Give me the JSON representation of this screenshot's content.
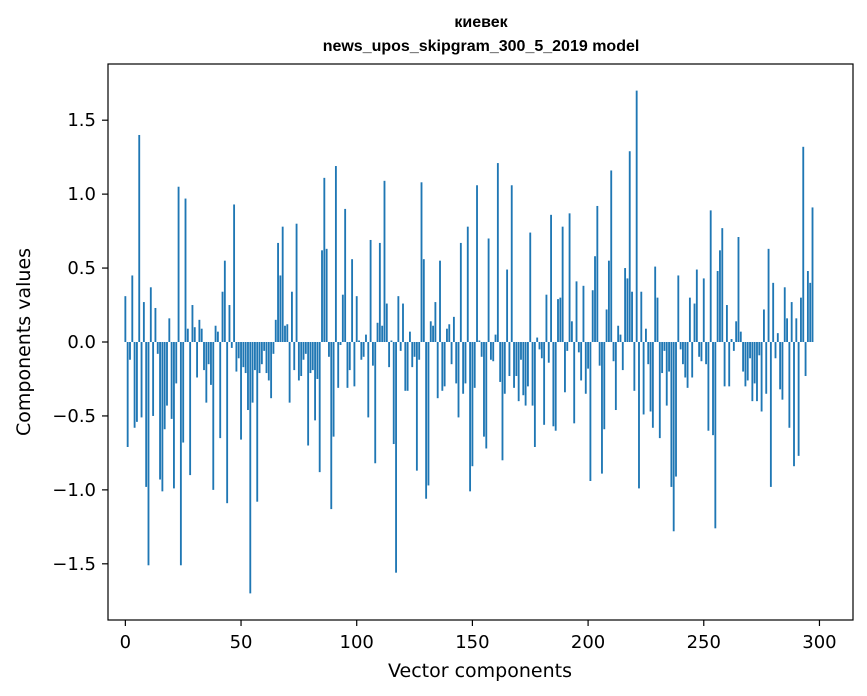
{
  "chart_data": {
    "type": "bar",
    "title": "киевек",
    "subtitle": "news_upos_skipgram_300_5_2019 model",
    "xlabel": "Vector components",
    "ylabel": "Components values",
    "xlim": [
      -7.5,
      314.5
    ],
    "ylim": [
      -1.88,
      1.88
    ],
    "xticks": [
      0,
      50,
      100,
      150,
      200,
      250,
      300
    ],
    "yticks": [
      -1.5,
      -1.0,
      -0.5,
      0.0,
      0.5,
      1.0,
      1.5
    ],
    "ytick_labels": [
      "−1.5",
      "−1.0",
      "−0.5",
      "0.0",
      "0.5",
      "1.0",
      "1.5"
    ],
    "bar_color": "#1f77b4",
    "x_start": 0,
    "values": [
      0.31,
      -0.71,
      -0.12,
      0.45,
      -0.58,
      -0.54,
      1.4,
      -0.51,
      0.27,
      -0.98,
      -1.51,
      0.37,
      -0.5,
      0.23,
      -0.08,
      -0.93,
      -1.01,
      -0.59,
      -0.43,
      0.16,
      -0.52,
      -0.99,
      -0.28,
      1.05,
      -1.51,
      -0.68,
      0.97,
      0.09,
      -0.9,
      0.25,
      0.1,
      -0.24,
      0.15,
      0.09,
      -0.19,
      -0.41,
      -0.15,
      -0.29,
      -1.0,
      0.11,
      0.07,
      -0.65,
      0.34,
      0.55,
      -1.09,
      0.25,
      -0.04,
      0.93,
      -0.2,
      -0.11,
      -0.66,
      -0.17,
      -0.21,
      -0.46,
      -1.7,
      -0.41,
      -0.19,
      -1.08,
      -0.21,
      -0.15,
      -0.06,
      -0.21,
      -0.26,
      -0.38,
      -0.08,
      0.15,
      0.67,
      0.45,
      0.78,
      0.11,
      0.12,
      -0.41,
      0.34,
      -0.19,
      0.8,
      -0.26,
      -0.23,
      -0.12,
      -0.08,
      -0.7,
      -0.21,
      -0.19,
      -0.53,
      -0.25,
      -0.88,
      0.62,
      1.11,
      0.63,
      -0.1,
      -1.13,
      -0.64,
      1.19,
      -0.31,
      -0.02,
      0.32,
      0.9,
      -0.31,
      -0.19,
      0.56,
      -0.3,
      0.31,
      0.01,
      -0.12,
      -0.1,
      0.05,
      -0.51,
      0.69,
      -0.16,
      -0.82,
      0.13,
      0.67,
      0.11,
      1.09,
      0.26,
      -0.17,
      0.01,
      -0.69,
      -1.56,
      0.31,
      -0.06,
      0.26,
      -0.33,
      -0.33,
      0.07,
      -0.17,
      -0.1,
      -0.87,
      -0.12,
      1.08,
      0.56,
      -1.06,
      -0.97,
      0.14,
      0.11,
      0.27,
      -0.38,
      0.55,
      -0.33,
      -0.3,
      0.09,
      0.12,
      -0.15,
      0.17,
      -0.28,
      -0.51,
      0.67,
      -0.35,
      -0.28,
      0.78,
      -1.01,
      -0.84,
      -0.31,
      1.06,
      0.01,
      -0.1,
      -0.64,
      -0.72,
      0.7,
      -0.12,
      -0.13,
      0.05,
      1.21,
      -0.27,
      -0.8,
      -0.35,
      0.49,
      -0.23,
      1.06,
      -0.31,
      -0.23,
      -0.4,
      -0.12,
      -0.36,
      -0.43,
      -0.3,
      0.74,
      -0.43,
      -0.71,
      0.03,
      -0.05,
      -0.11,
      -0.56,
      0.32,
      -0.14,
      0.86,
      -0.57,
      -0.6,
      0.29,
      0.3,
      0.78,
      -0.34,
      -0.06,
      0.87,
      0.14,
      -0.55,
      0.41,
      -0.07,
      -0.26,
      0.38,
      -0.35,
      -0.18,
      -0.94,
      0.35,
      0.58,
      0.92,
      -0.16,
      -0.89,
      -0.59,
      0.22,
      0.55,
      1.16,
      -0.13,
      -0.46,
      0.11,
      0.05,
      -0.19,
      0.5,
      0.43,
      1.29,
      0.34,
      -0.33,
      1.7,
      -0.99,
      0.34,
      -0.49,
      0.09,
      -0.15,
      -0.47,
      -0.58,
      0.51,
      0.3,
      -0.65,
      -0.21,
      -0.06,
      -0.43,
      -0.2,
      -0.98,
      -1.28,
      -0.91,
      0.45,
      -0.05,
      -0.15,
      -0.24,
      -0.31,
      0.3,
      -0.24,
      0.26,
      0.49,
      -0.1,
      -0.13,
      0.43,
      -0.15,
      -0.6,
      0.89,
      -0.63,
      -1.26,
      0.48,
      0.62,
      0.77,
      -0.3,
      0.25,
      -0.3,
      0.02,
      -0.06,
      0.14,
      0.71,
      0.07,
      -0.2,
      -0.3,
      -0.26,
      -0.11,
      -0.4,
      -0.28,
      -0.4,
      -0.09,
      -0.47,
      0.22,
      -0.35,
      0.63,
      -0.98,
      0.4,
      -0.11,
      0.06,
      -0.32,
      -0.39,
      0.37,
      0.16,
      -0.58,
      0.27,
      -0.84,
      0.16,
      -0.77,
      0.3,
      1.32,
      -0.23,
      0.48,
      0.4,
      0.91
    ]
  }
}
